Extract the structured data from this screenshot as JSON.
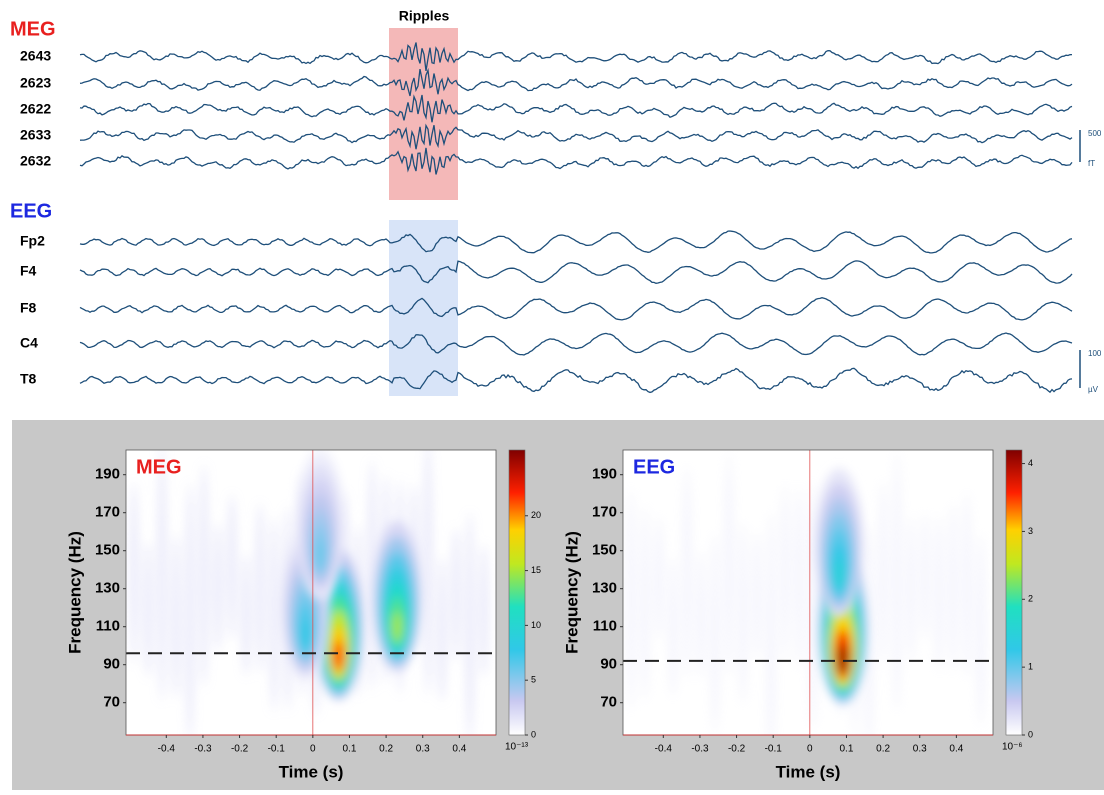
{
  "chart_data": [
    {
      "type": "traces",
      "title": "Ripples",
      "groups": [
        {
          "name": "MEG",
          "color": "#e8201f",
          "channels": [
            "2643",
            "2623",
            "2622",
            "2633",
            "2632"
          ],
          "highlight_color": "#f4b8b8",
          "scale_value": 500,
          "scale_unit": "fT"
        },
        {
          "name": "EEG",
          "color": "#1d28e0",
          "channels": [
            "Fp2",
            "F4",
            "F8",
            "C4",
            "T8"
          ],
          "highlight_color": "#d8e4f8",
          "scale_value": 100,
          "scale_unit": "µV"
        }
      ]
    },
    {
      "type": "heatmap",
      "label": "MEG",
      "label_color": "#e8201f",
      "xlabel": "Time (s)",
      "ylabel": "Frequency (Hz)",
      "xlim": [
        -0.51,
        0.5
      ],
      "xticks": [
        -0.4,
        -0.3,
        -0.2,
        -0.1,
        0,
        0.1,
        0.2,
        0.3,
        0.4
      ],
      "ylim": [
        53,
        203
      ],
      "yticks": [
        70,
        90,
        110,
        130,
        150,
        170,
        190
      ],
      "clim": [
        0,
        26
      ],
      "cticks": [
        0,
        5,
        10,
        15,
        20
      ],
      "cunit": "10⁻¹³",
      "hline": 96,
      "vline": 0,
      "peaks": [
        {
          "x": 0.07,
          "y": 97,
          "value": 22
        },
        {
          "x": 0.23,
          "y": 112,
          "value": 15
        },
        {
          "x": -0.02,
          "y": 108,
          "value": 8
        },
        {
          "x": 0.02,
          "y": 150,
          "value": 6
        }
      ]
    },
    {
      "type": "heatmap",
      "label": "EEG",
      "label_color": "#1d28e0",
      "xlabel": "Time (s)",
      "ylabel": "Frequency (Hz)",
      "xlim": [
        -0.51,
        0.5
      ],
      "xticks": [
        -0.4,
        -0.3,
        -0.2,
        -0.1,
        0,
        0.1,
        0.2,
        0.3,
        0.4
      ],
      "ylim": [
        53,
        203
      ],
      "yticks": [
        70,
        90,
        110,
        130,
        150,
        170,
        190
      ],
      "clim": [
        0,
        4.2
      ],
      "cticks": [
        0,
        1,
        2,
        3,
        4
      ],
      "cunit": "10⁻⁶",
      "hline": 92,
      "vline": 0,
      "peaks": [
        {
          "x": 0.09,
          "y": 95,
          "value": 4.2
        },
        {
          "x": 0.08,
          "y": 140,
          "value": 1.5
        }
      ]
    }
  ]
}
